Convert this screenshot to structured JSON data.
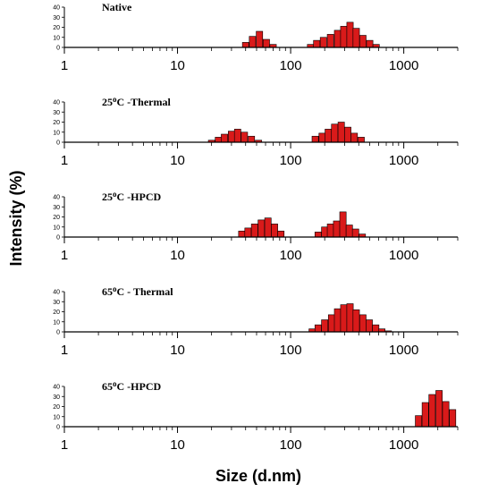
{
  "chart_data": {
    "type": "bar",
    "xlabel": "Size (d.nm)",
    "ylabel": "Intensity (%)",
    "x_scale": "log",
    "xlim": [
      1,
      3000
    ],
    "x_ticks": [
      "1",
      "10",
      "100",
      "1000"
    ],
    "ylim": [
      0,
      40
    ],
    "y_ticks": [
      "0",
      "10",
      "20",
      "30",
      "40"
    ],
    "bar_color": "#d91a1a",
    "bar_edge": "#000000",
    "panels": [
      {
        "title_prefix": "Native",
        "title_sup": "",
        "title_suffix": "",
        "bars": [
          {
            "x": 40,
            "y": 5
          },
          {
            "x": 46,
            "y": 11
          },
          {
            "x": 53,
            "y": 16
          },
          {
            "x": 61,
            "y": 8
          },
          {
            "x": 70,
            "y": 3
          },
          {
            "x": 150,
            "y": 3
          },
          {
            "x": 170,
            "y": 7
          },
          {
            "x": 195,
            "y": 10
          },
          {
            "x": 225,
            "y": 13
          },
          {
            "x": 260,
            "y": 17
          },
          {
            "x": 295,
            "y": 21
          },
          {
            "x": 335,
            "y": 25
          },
          {
            "x": 380,
            "y": 19
          },
          {
            "x": 435,
            "y": 12
          },
          {
            "x": 500,
            "y": 7
          },
          {
            "x": 570,
            "y": 3
          }
        ]
      },
      {
        "title_prefix": "25",
        "title_sup": "o",
        "title_suffix": "C -Thermal",
        "bars": [
          {
            "x": 20,
            "y": 2
          },
          {
            "x": 23,
            "y": 5
          },
          {
            "x": 26,
            "y": 8
          },
          {
            "x": 30,
            "y": 11
          },
          {
            "x": 34,
            "y": 13
          },
          {
            "x": 39,
            "y": 10
          },
          {
            "x": 45,
            "y": 6
          },
          {
            "x": 52,
            "y": 2
          },
          {
            "x": 165,
            "y": 6
          },
          {
            "x": 190,
            "y": 9
          },
          {
            "x": 215,
            "y": 13
          },
          {
            "x": 245,
            "y": 18
          },
          {
            "x": 280,
            "y": 20
          },
          {
            "x": 320,
            "y": 15
          },
          {
            "x": 365,
            "y": 9
          },
          {
            "x": 420,
            "y": 5
          }
        ]
      },
      {
        "title_prefix": "25",
        "title_sup": "o",
        "title_suffix": "C -HPCD",
        "bars": [
          {
            "x": 37,
            "y": 6
          },
          {
            "x": 42,
            "y": 9
          },
          {
            "x": 48,
            "y": 13
          },
          {
            "x": 55,
            "y": 17
          },
          {
            "x": 63,
            "y": 19
          },
          {
            "x": 72,
            "y": 13
          },
          {
            "x": 82,
            "y": 6
          },
          {
            "x": 175,
            "y": 5
          },
          {
            "x": 200,
            "y": 10
          },
          {
            "x": 225,
            "y": 13
          },
          {
            "x": 255,
            "y": 16
          },
          {
            "x": 290,
            "y": 25
          },
          {
            "x": 330,
            "y": 12
          },
          {
            "x": 375,
            "y": 8
          },
          {
            "x": 430,
            "y": 3
          }
        ]
      },
      {
        "title_prefix": "65",
        "title_sup": "o",
        "title_suffix": "C - Thermal",
        "bars": [
          {
            "x": 155,
            "y": 3
          },
          {
            "x": 175,
            "y": 7
          },
          {
            "x": 200,
            "y": 12
          },
          {
            "x": 230,
            "y": 17
          },
          {
            "x": 260,
            "y": 23
          },
          {
            "x": 295,
            "y": 27
          },
          {
            "x": 335,
            "y": 28
          },
          {
            "x": 380,
            "y": 22
          },
          {
            "x": 435,
            "y": 17
          },
          {
            "x": 495,
            "y": 12
          },
          {
            "x": 565,
            "y": 7
          },
          {
            "x": 640,
            "y": 3
          },
          {
            "x": 730,
            "y": 1
          }
        ]
      },
      {
        "title_prefix": "65",
        "title_sup": "o",
        "title_suffix": "C  -HPCD",
        "bars": [
          {
            "x": 1350,
            "y": 11
          },
          {
            "x": 1550,
            "y": 24
          },
          {
            "x": 1780,
            "y": 32
          },
          {
            "x": 2050,
            "y": 36
          },
          {
            "x": 2350,
            "y": 25
          },
          {
            "x": 2700,
            "y": 17
          }
        ]
      }
    ]
  }
}
